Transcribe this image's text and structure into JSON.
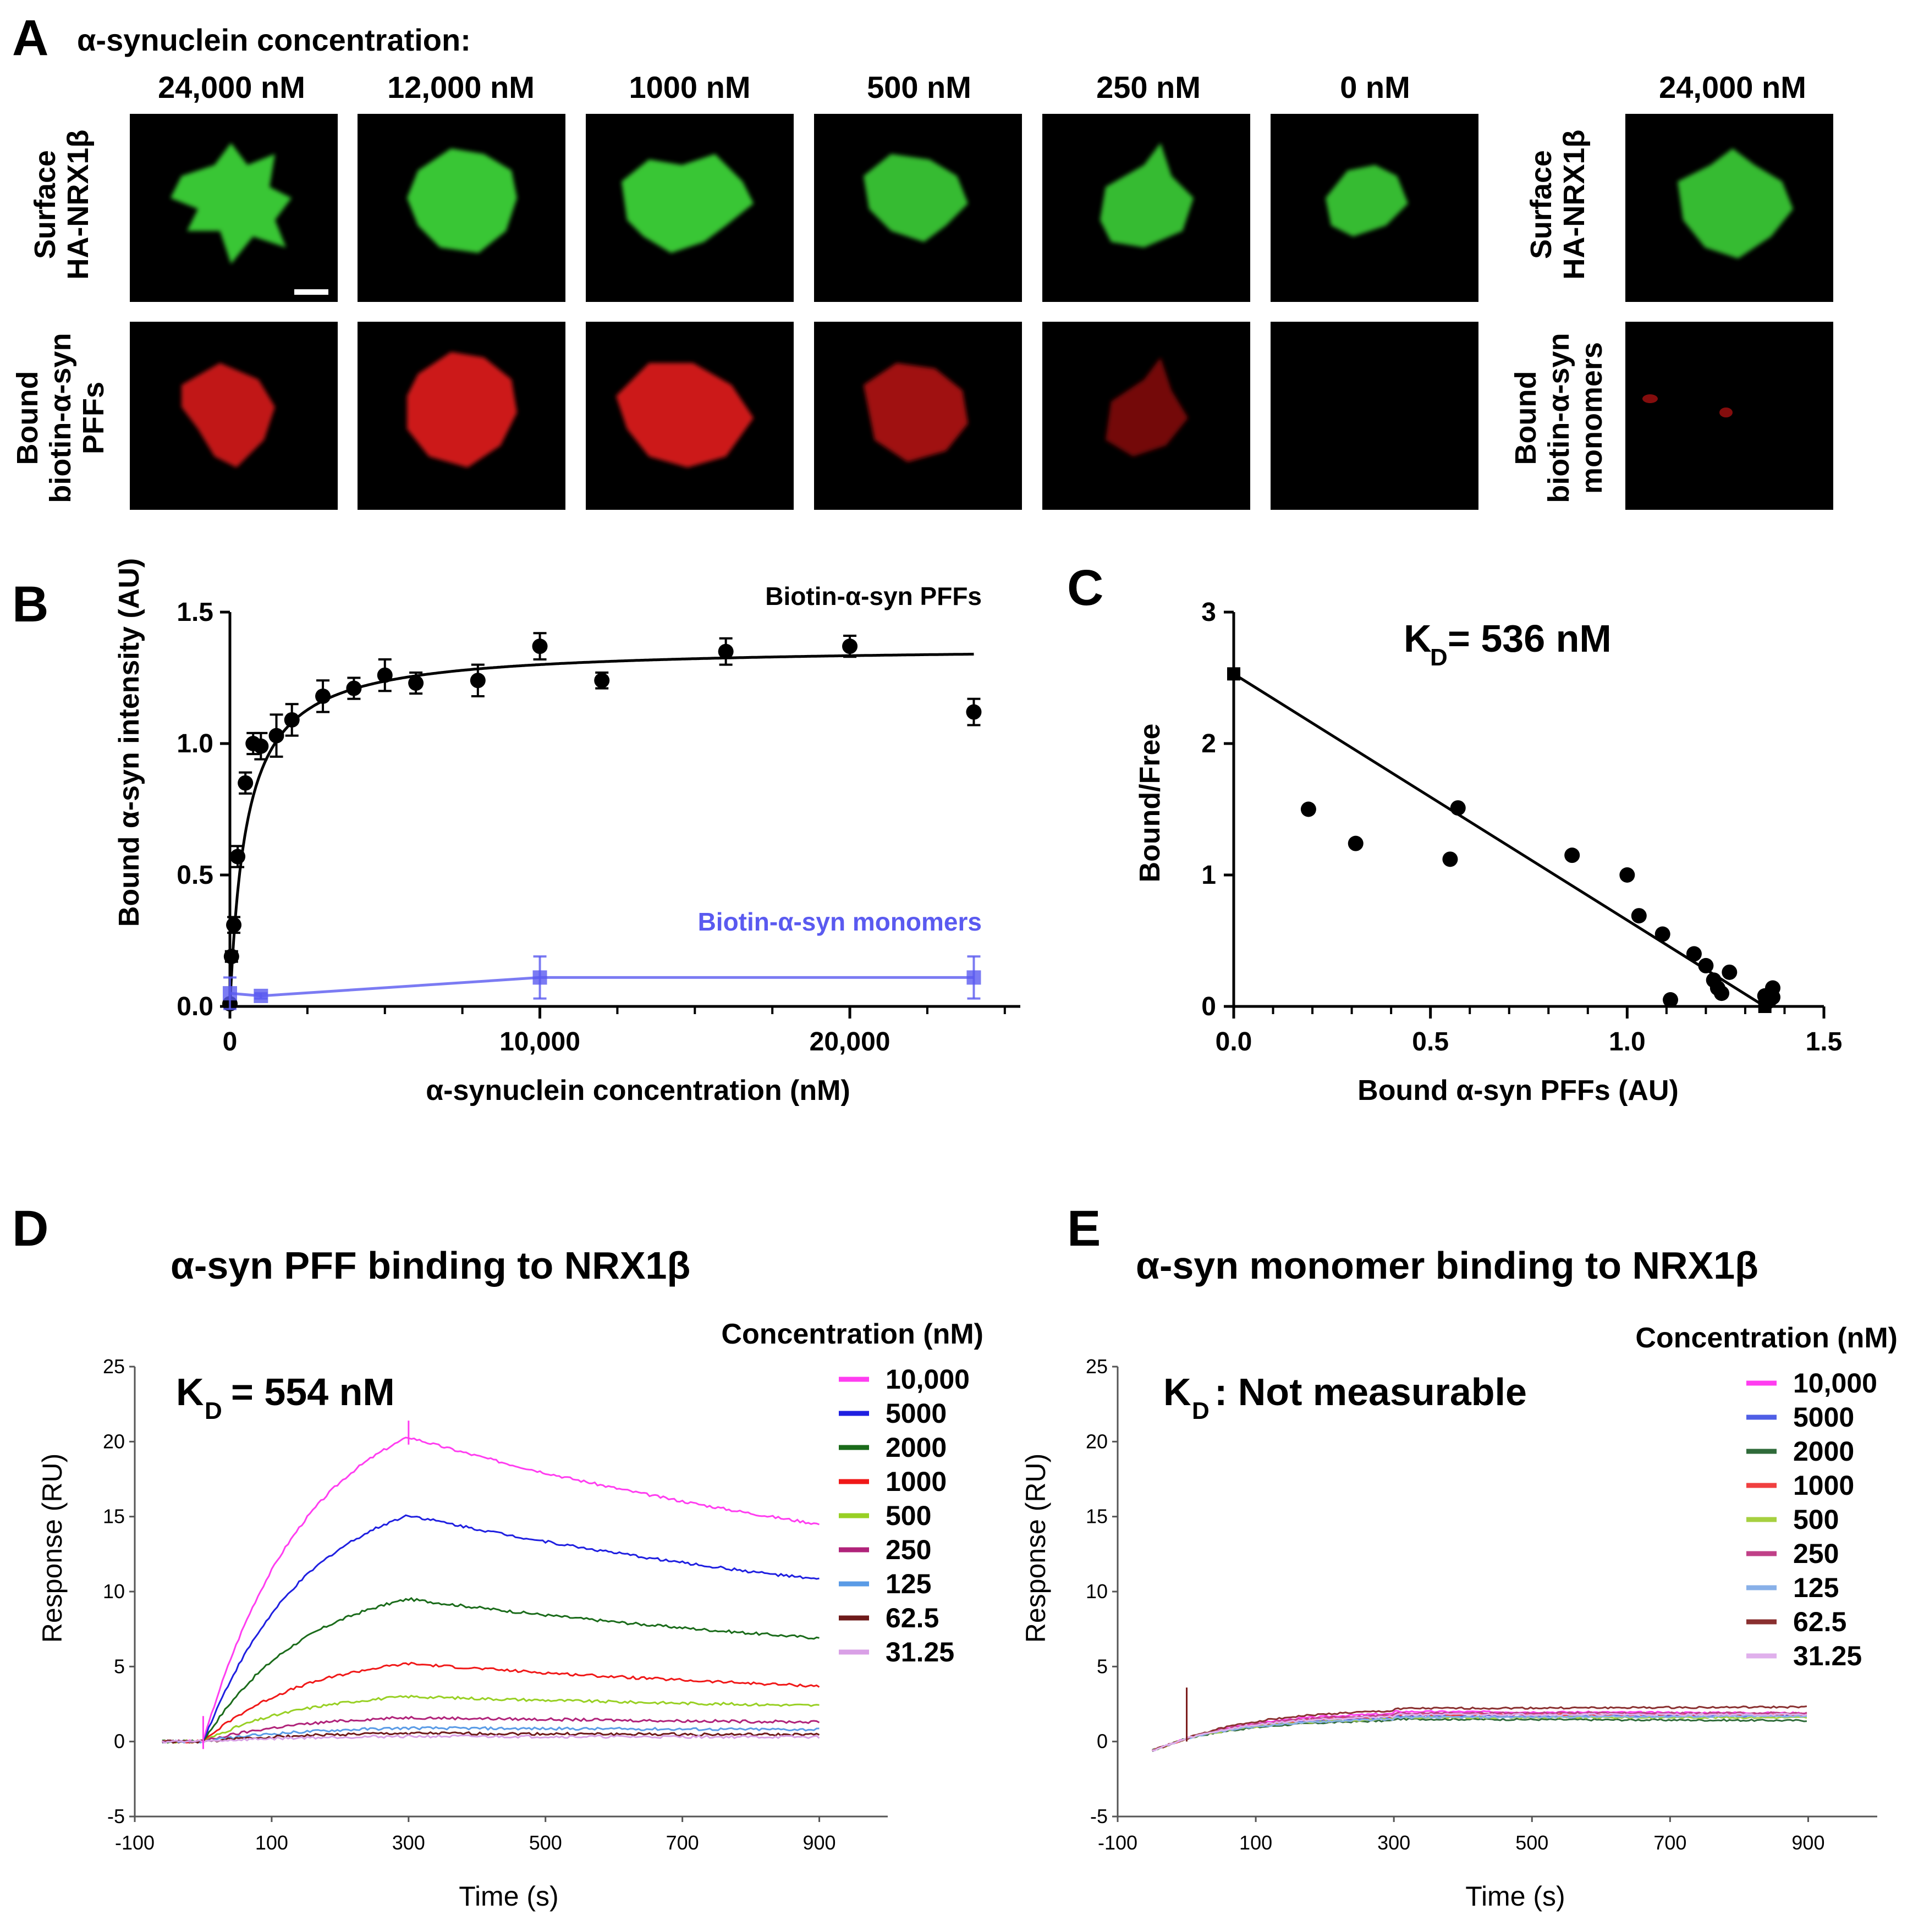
{
  "panel_letters": {
    "A": "A",
    "B": "B",
    "C": "C",
    "D": "D",
    "E": "E"
  },
  "panelA": {
    "title": "α-synuclein concentration:",
    "columns": [
      "24,000 nM",
      "12,000 nM",
      "1000 nM",
      "500 nM",
      "250 nM",
      "0 nM"
    ],
    "extra_column": "24,000 nM",
    "row1_label": [
      "Surface",
      "HA-NRX1β"
    ],
    "row2_label": [
      "Bound",
      "biotin-α-syn",
      "PFFs"
    ],
    "extra_row1_label": [
      "Surface",
      "HA-NRX1β"
    ],
    "extra_row2_label": [
      "Bound",
      "biotin-α-syn",
      "monomers"
    ],
    "colors": {
      "green": "#3fdc3a",
      "red": "#e31b1b",
      "background": "#000000"
    }
  },
  "chart_data": [
    {
      "id": "B",
      "type": "scatter",
      "xlabel": "α-synuclein concentration (nM)",
      "ylabel": "Bound α-syn intensity (AU)",
      "xlim": [
        0,
        25500
      ],
      "ylim": [
        0,
        1.5
      ],
      "xticks": [
        0,
        10000,
        20000
      ],
      "xtick_labels": [
        "0",
        "10,000",
        "20,000"
      ],
      "yticks": [
        0,
        0.5,
        1.0,
        1.5
      ],
      "ytick_labels": [
        "0.0",
        "0.5",
        "1.0",
        "1.5"
      ],
      "series": [
        {
          "name": "Biotin-α-syn PFFs",
          "color": "#000000",
          "marker": "circle",
          "x": [
            0,
            50,
            125,
            250,
            500,
            750,
            1000,
            1500,
            2000,
            3000,
            4000,
            5000,
            6000,
            8000,
            10000,
            12000,
            16000,
            20000,
            24000
          ],
          "y": [
            0.01,
            0.19,
            0.31,
            0.57,
            0.85,
            1.0,
            0.99,
            1.03,
            1.09,
            1.18,
            1.21,
            1.26,
            1.23,
            1.24,
            1.37,
            1.24,
            1.35,
            1.37,
            1.12
          ],
          "err": [
            0.01,
            0.02,
            0.03,
            0.04,
            0.04,
            0.04,
            0.05,
            0.08,
            0.06,
            0.06,
            0.04,
            0.06,
            0.04,
            0.06,
            0.05,
            0.03,
            0.05,
            0.04,
            0.05
          ],
          "fit": "one-site binding hyperbola, Bmax 1.37, KD 536 nM"
        },
        {
          "name": "Biotin-α-syn monomers",
          "color": "#5a5af0",
          "marker": "square",
          "x": [
            0,
            1000,
            10000,
            24000
          ],
          "y": [
            0.05,
            0.04,
            0.11,
            0.11
          ],
          "err": [
            0.06,
            0.01,
            0.08,
            0.08
          ]
        }
      ]
    },
    {
      "id": "C",
      "type": "scatter",
      "title": "K",
      "title_sub": "D",
      "title_rest": "= 536 nM",
      "xlabel": "Bound α-syn PFFs (AU)",
      "ylabel": "Bound/Free",
      "xlim": [
        0,
        1.5
      ],
      "ylim": [
        0,
        3
      ],
      "xticks": [
        0,
        0.5,
        1.0,
        1.5
      ],
      "xtick_labels": [
        "0.0",
        "0.5",
        "1.0",
        "1.5"
      ],
      "yticks": [
        0,
        1,
        2,
        3
      ],
      "ytick_labels": [
        "0",
        "1",
        "2",
        "3"
      ],
      "points_x": [
        0.19,
        0.31,
        0.55,
        0.57,
        0.86,
        1.0,
        1.03,
        1.09,
        1.11,
        1.17,
        1.2,
        1.22,
        1.23,
        1.24,
        1.26,
        1.35,
        1.36,
        1.37,
        1.37
      ],
      "points_y": [
        1.5,
        1.24,
        1.12,
        1.51,
        1.15,
        1.0,
        0.69,
        0.55,
        0.05,
        0.4,
        0.31,
        0.2,
        0.14,
        0.1,
        0.26,
        0.08,
        0.04,
        0.14,
        0.07
      ],
      "line": {
        "x": [
          0.0,
          1.35
        ],
        "y": [
          2.53,
          0.0
        ]
      }
    },
    {
      "id": "D",
      "type": "line",
      "title": "α-syn PFF binding to NRX1β",
      "kd_sym": "K",
      "kd_sub": "D",
      "kd_text": "= 554 nM",
      "xlabel": "Time (s)",
      "ylabel": "Response (RU)",
      "xlim": [
        -100,
        1000
      ],
      "ylim": [
        -5,
        25
      ],
      "xticks": [
        -100,
        100,
        300,
        500,
        700,
        900
      ],
      "xtick_labels": [
        "-100",
        "100",
        "300",
        "500",
        "700",
        "900"
      ],
      "yticks": [
        -5,
        0,
        5,
        10,
        15,
        20,
        25
      ],
      "ytick_labels": [
        "-5",
        "0",
        "5",
        "10",
        "15",
        "20",
        "25"
      ],
      "legend_title": "Concentration (nM)",
      "series": [
        {
          "name": "10,000",
          "color": "#ff3df0",
          "peak": 20.3,
          "end": 14.5
        },
        {
          "name": "5000",
          "color": "#1f1fe0",
          "peak": 15.1,
          "end": 10.8
        },
        {
          "name": "2000",
          "color": "#1a6b1a",
          "peak": 9.5,
          "end": 6.9
        },
        {
          "name": "1000",
          "color": "#f01818",
          "peak": 5.2,
          "end": 3.7
        },
        {
          "name": "500",
          "color": "#98d024",
          "peak": 3.0,
          "end": 2.4
        },
        {
          "name": "250",
          "color": "#b0237a",
          "peak": 1.6,
          "end": 1.3
        },
        {
          "name": "125",
          "color": "#5a9be6",
          "peak": 0.9,
          "end": 0.8
        },
        {
          "name": "62.5",
          "color": "#6e1a1a",
          "peak": 0.55,
          "end": 0.45
        },
        {
          "name": "31.25",
          "color": "#d9a0e6",
          "peak": 0.35,
          "end": 0.3
        }
      ]
    },
    {
      "id": "E",
      "type": "line",
      "title": "α-syn monomer binding to NRX1β",
      "kd_sym": "K",
      "kd_sub": "D",
      "kd_text": ": Not measurable",
      "xlabel": "Time (s)",
      "ylabel": "Response (RU)",
      "xlim": [
        -100,
        1000
      ],
      "ylim": [
        -5,
        25
      ],
      "xticks": [
        -100,
        100,
        300,
        500,
        700,
        900
      ],
      "xtick_labels": [
        "-100",
        "100",
        "300",
        "500",
        "700",
        "900"
      ],
      "yticks": [
        -5,
        0,
        5,
        10,
        15,
        20,
        25
      ],
      "ytick_labels": [
        "-5",
        "0",
        "5",
        "10",
        "15",
        "20",
        "25"
      ],
      "legend_title": "Concentration (nM)",
      "series": [
        {
          "name": "10,000",
          "color": "#ff3df0",
          "peak": 2.0,
          "end": 1.9
        },
        {
          "name": "5000",
          "color": "#4f5fe6",
          "peak": 1.7,
          "end": 1.7
        },
        {
          "name": "2000",
          "color": "#2f6b3a",
          "peak": 1.5,
          "end": 1.4
        },
        {
          "name": "1000",
          "color": "#f04040",
          "peak": 1.8,
          "end": 1.8
        },
        {
          "name": "500",
          "color": "#a6d040",
          "peak": 1.6,
          "end": 1.6
        },
        {
          "name": "250",
          "color": "#c04088",
          "peak": 1.9,
          "end": 1.9
        },
        {
          "name": "125",
          "color": "#88b0e8",
          "peak": 1.6,
          "end": 1.7
        },
        {
          "name": "62.5",
          "color": "#8a3030",
          "peak": 2.2,
          "end": 2.3
        },
        {
          "name": "31.25",
          "color": "#e0b0ec",
          "peak": 1.8,
          "end": 1.8
        }
      ]
    }
  ]
}
